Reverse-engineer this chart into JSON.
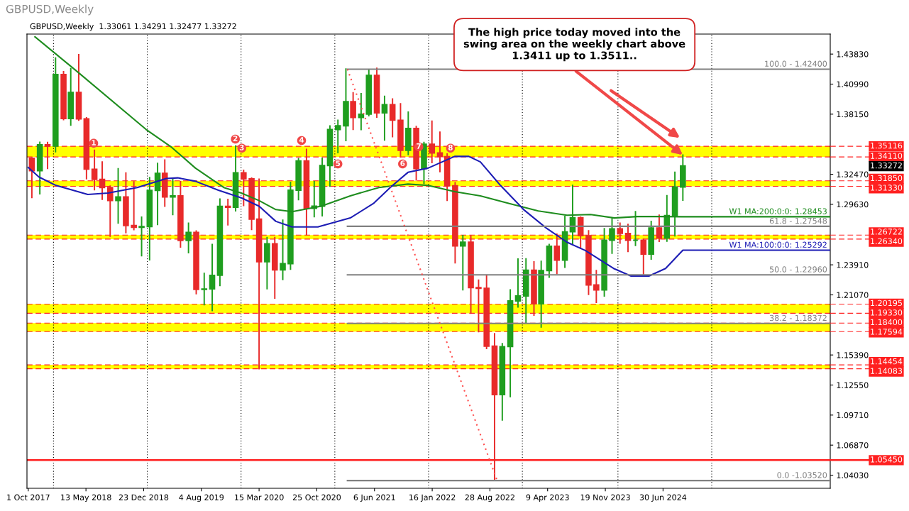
{
  "chart_data": {
    "type": "candlestick",
    "title": "GBPUSD,Weekly",
    "subtitle": "GBPUSD,Weekly  1.33061 1.34291 1.32477 1.33272",
    "x": [
      "2017-10-15",
      "2017-11-15",
      "2017-12-15",
      "2018-01-15",
      "2018-02-15",
      "2018-03-15",
      "2018-04-15",
      "2018-05-15",
      "2018-06-15",
      "2018-07-15",
      "2018-08-15",
      "2018-09-15",
      "2018-10-15",
      "2018-11-15",
      "2018-12-15",
      "2019-01-15",
      "2019-02-15",
      "2019-03-15",
      "2019-04-15",
      "2019-05-15",
      "2019-06-15",
      "2019-07-15",
      "2019-08-15",
      "2019-09-15",
      "2019-10-15",
      "2019-11-15",
      "2019-12-15",
      "2020-01-15",
      "2020-02-15",
      "2020-03-15",
      "2020-04-15",
      "2020-05-15",
      "2020-06-15",
      "2020-07-15",
      "2020-08-15",
      "2020-09-15",
      "2020-10-15",
      "2020-11-15",
      "2020-12-15",
      "2021-01-15",
      "2021-02-15",
      "2021-03-15",
      "2021-04-15",
      "2021-05-15",
      "2021-06-15",
      "2021-07-15",
      "2021-08-15",
      "2021-09-15",
      "2021-10-15",
      "2021-11-15",
      "2021-12-15",
      "2022-01-15",
      "2022-02-15",
      "2022-03-15",
      "2022-04-15",
      "2022-05-15",
      "2022-06-15",
      "2022-07-15",
      "2022-08-15",
      "2022-09-15",
      "2022-10-15",
      "2022-11-15",
      "2022-12-15",
      "2023-01-15",
      "2023-02-15",
      "2023-03-15",
      "2023-04-15",
      "2023-05-15",
      "2023-06-15",
      "2023-07-15",
      "2023-08-15",
      "2023-09-15",
      "2023-10-15",
      "2023-11-15",
      "2023-12-15",
      "2024-01-15",
      "2024-02-15",
      "2024-03-15",
      "2024-04-15",
      "2024-05-15",
      "2024-06-15",
      "2024-07-15",
      "2024-08-15",
      "2024-09-15"
    ],
    "ohlc": [
      [
        1.3398,
        1.3401,
        1.3027,
        1.3281
      ],
      [
        1.3281,
        1.3549,
        1.3062,
        1.3525
      ],
      [
        1.3525,
        1.3548,
        1.3302,
        1.3513
      ],
      [
        1.3513,
        1.4345,
        1.346,
        1.419
      ],
      [
        1.419,
        1.4216,
        1.3764,
        1.3773
      ],
      [
        1.3773,
        1.4245,
        1.3712,
        1.402
      ],
      [
        1.402,
        1.4377,
        1.3758,
        1.377
      ],
      [
        1.377,
        1.378,
        1.3205,
        1.3295
      ],
      [
        1.3295,
        1.3473,
        1.3101,
        1.3198
      ],
      [
        1.3198,
        1.3363,
        1.3011,
        1.3122
      ],
      [
        1.3122,
        1.3135,
        1.2662,
        1.2998
      ],
      [
        1.2998,
        1.3299,
        1.2786,
        1.3033
      ],
      [
        1.3033,
        1.3259,
        1.2696,
        1.2763
      ],
      [
        1.2763,
        1.3176,
        1.2723,
        1.2745
      ],
      [
        1.2745,
        1.2841,
        1.2477,
        1.2752
      ],
      [
        1.2752,
        1.3215,
        1.2438,
        1.3094
      ],
      [
        1.3094,
        1.3349,
        1.2773,
        1.3256
      ],
      [
        1.3256,
        1.3382,
        1.2945,
        1.3032
      ],
      [
        1.3032,
        1.3197,
        1.2866,
        1.3043
      ],
      [
        1.3043,
        1.3177,
        1.256,
        1.2621
      ],
      [
        1.2621,
        1.2784,
        1.2506,
        1.2697
      ],
      [
        1.2697,
        1.271,
        1.2119,
        1.2159
      ],
      [
        1.2159,
        1.231,
        1.2015,
        1.2163
      ],
      [
        1.2163,
        1.2583,
        1.1959,
        1.2292
      ],
      [
        1.2292,
        1.3013,
        1.2196,
        1.2944
      ],
      [
        1.2944,
        1.301,
        1.2769,
        1.2935
      ],
      [
        1.2935,
        1.3514,
        1.2902,
        1.326
      ],
      [
        1.326,
        1.3285,
        1.2952,
        1.3203
      ],
      [
        1.3203,
        1.3211,
        1.2725,
        1.2823
      ],
      [
        1.2823,
        1.32,
        1.1409,
        1.242
      ],
      [
        1.242,
        1.2648,
        1.2165,
        1.259
      ],
      [
        1.259,
        1.2648,
        1.2076,
        1.2343
      ],
      [
        1.2343,
        1.2813,
        1.2252,
        1.2402
      ],
      [
        1.2402,
        1.317,
        1.235,
        1.3096
      ],
      [
        1.3096,
        1.3395,
        1.3007,
        1.3373
      ],
      [
        1.3373,
        1.3482,
        1.2676,
        1.2925
      ],
      [
        1.2925,
        1.3177,
        1.2846,
        1.2945
      ],
      [
        1.2945,
        1.3399,
        1.2854,
        1.333
      ],
      [
        1.333,
        1.3704,
        1.3135,
        1.367
      ],
      [
        1.367,
        1.3758,
        1.3451,
        1.3705
      ],
      [
        1.3705,
        1.4241,
        1.3566,
        1.3933
      ],
      [
        1.3933,
        1.4017,
        1.3671,
        1.3783
      ],
      [
        1.3783,
        1.4009,
        1.3669,
        1.3815
      ],
      [
        1.3815,
        1.4234,
        1.38,
        1.4182
      ],
      [
        1.4182,
        1.4249,
        1.3787,
        1.3827
      ],
      [
        1.3827,
        1.3984,
        1.3571,
        1.3905
      ],
      [
        1.3905,
        1.3958,
        1.3602,
        1.3758
      ],
      [
        1.3758,
        1.3913,
        1.3412,
        1.3474
      ],
      [
        1.3474,
        1.3834,
        1.3434,
        1.368
      ],
      [
        1.368,
        1.3698,
        1.3194,
        1.33
      ],
      [
        1.33,
        1.3548,
        1.3161,
        1.3531
      ],
      [
        1.3531,
        1.3749,
        1.3358,
        1.3449
      ],
      [
        1.3449,
        1.3644,
        1.3273,
        1.3414
      ],
      [
        1.3414,
        1.3438,
        1.3,
        1.3138
      ],
      [
        1.3138,
        1.3167,
        1.2411,
        1.2569
      ],
      [
        1.2569,
        1.2667,
        1.2155,
        1.2605
      ],
      [
        1.2605,
        1.2666,
        1.1934,
        1.2175
      ],
      [
        1.2175,
        1.2246,
        1.176,
        1.2169
      ],
      [
        1.2169,
        1.2293,
        1.16,
        1.1622
      ],
      [
        1.1622,
        1.1739,
        1.0352,
        1.1165
      ],
      [
        1.1165,
        1.1646,
        1.0924,
        1.1618
      ],
      [
        1.1618,
        1.2154,
        1.1146,
        1.205
      ],
      [
        1.205,
        1.2446,
        1.1992,
        1.2097
      ],
      [
        1.2097,
        1.2448,
        1.1842,
        1.2341
      ],
      [
        1.2341,
        1.2419,
        1.1915,
        1.2023
      ],
      [
        1.2023,
        1.2424,
        1.1803,
        1.2337
      ],
      [
        1.2337,
        1.2584,
        1.2275,
        1.2566
      ],
      [
        1.2566,
        1.268,
        1.2308,
        1.2436
      ],
      [
        1.2436,
        1.2848,
        1.2369,
        1.2703
      ],
      [
        1.2703,
        1.3142,
        1.2591,
        1.2836
      ],
      [
        1.2836,
        1.2841,
        1.2548,
        1.2666
      ],
      [
        1.2666,
        1.2713,
        1.2111,
        1.2201
      ],
      [
        1.2201,
        1.2337,
        1.2037,
        1.2154
      ],
      [
        1.2154,
        1.2733,
        1.2096,
        1.2623
      ],
      [
        1.2623,
        1.2827,
        1.25,
        1.2731
      ],
      [
        1.2731,
        1.2785,
        1.2597,
        1.2688
      ],
      [
        1.2688,
        1.2773,
        1.2518,
        1.2624
      ],
      [
        1.2624,
        1.2893,
        1.2575,
        1.2624
      ],
      [
        1.2624,
        1.2634,
        1.23,
        1.2492
      ],
      [
        1.2492,
        1.2801,
        1.2446,
        1.274
      ],
      [
        1.274,
        1.286,
        1.2613,
        1.2645
      ],
      [
        1.2645,
        1.3044,
        1.2615,
        1.2857
      ],
      [
        1.2857,
        1.3266,
        1.2665,
        1.3126
      ],
      [
        1.3126,
        1.3429,
        1.3002,
        1.3327
      ]
    ],
    "colors": [
      "#e82a2a",
      "#1f9e1f",
      "#e82a2a",
      "#1f9e1f",
      "#e82a2a",
      "#1f9e1f",
      "#e82a2a",
      "#e82a2a",
      "#e82a2a",
      "#e82a2a",
      "#e82a2a",
      "#1f9e1f",
      "#e82a2a",
      "#e82a2a",
      "#1f9e1f",
      "#1f9e1f",
      "#1f9e1f",
      "#e82a2a",
      "#1f9e1f",
      "#e82a2a",
      "#1f9e1f",
      "#e82a2a",
      "#1f9e1f",
      "#1f9e1f",
      "#1f9e1f",
      "#e82a2a",
      "#1f9e1f",
      "#e82a2a",
      "#e82a2a",
      "#e82a2a",
      "#1f9e1f",
      "#e82a2a",
      "#1f9e1f",
      "#1f9e1f",
      "#1f9e1f",
      "#e82a2a",
      "#1f9e1f",
      "#1f9e1f",
      "#1f9e1f",
      "#1f9e1f",
      "#1f9e1f",
      "#e82a2a",
      "#1f9e1f",
      "#1f9e1f",
      "#e82a2a",
      "#1f9e1f",
      "#e82a2a",
      "#e82a2a",
      "#1f9e1f",
      "#e82a2a",
      "#1f9e1f",
      "#e82a2a",
      "#e82a2a",
      "#e82a2a",
      "#e82a2a",
      "#1f9e1f",
      "#e82a2a",
      "#e82a2a",
      "#e82a2a",
      "#e82a2a",
      "#1f9e1f",
      "#1f9e1f",
      "#1f9e1f",
      "#1f9e1f",
      "#e82a2a",
      "#1f9e1f",
      "#1f9e1f",
      "#e82a2a",
      "#1f9e1f",
      "#1f9e1f",
      "#e82a2a",
      "#e82a2a",
      "#e82a2a",
      "#1f9e1f",
      "#1f9e1f",
      "#e82a2a",
      "#e82a2a",
      "#1f9e1f",
      "#e82a2a",
      "#1f9e1f",
      "#e82a2a",
      "#1f9e1f",
      "#1f9e1f",
      "#1f9e1f"
    ],
    "series": [
      {
        "type": "line",
        "name": "W1 MA:200:0:0: 1.28453",
        "color": "#1e8c1e",
        "x": [
          "2017-10-27",
          "2018-04-05",
          "2019-01-01",
          "2019-04-11",
          "2019-07-12",
          "2019-10-30",
          "2020-01-06",
          "2020-03-15",
          "2020-05-19",
          "2020-07-21",
          "2020-11-11",
          "2021-03-04",
          "2021-06-23",
          "2021-10-14",
          "2021-12-31",
          "2022-04-13",
          "2022-07-22",
          "2022-11-11",
          "2023-03-04",
          "2023-06-23",
          "2023-09-23",
          "2023-12-24",
          "2024-03-22",
          "2024-06-19",
          "2024-09-15",
          "2026-04-10"
        ],
        "values": [
          1.4546,
          1.4226,
          1.3671,
          1.3501,
          1.3305,
          1.3122,
          1.3069,
          1.2998,
          1.2913,
          1.2893,
          1.2945,
          1.3043,
          1.3122,
          1.3154,
          1.3141,
          1.3083,
          1.3043,
          1.2971,
          1.29,
          1.286,
          1.2867,
          1.2834,
          1.2847,
          1.2847,
          1.28453,
          1.28453
        ]
      },
      {
        "type": "line",
        "name": "W1 MA:100:0:0: 1.25292",
        "color": "#1c1cb4",
        "x": [
          "2017-10-01",
          "2017-11-12",
          "2018-01-17",
          "2018-05-20",
          "2018-08-07",
          "2018-11-28",
          "2019-03-21",
          "2019-05-04",
          "2019-07-12",
          "2019-10-09",
          "2020-01-06",
          "2020-03-15",
          "2020-05-19",
          "2020-07-21",
          "2020-10-29",
          "2021-03-04",
          "2021-06-02",
          "2021-08-06",
          "2021-10-14",
          "2021-12-31",
          "2022-04-13",
          "2022-06-07",
          "2022-07-22",
          "2022-10-08",
          "2023-01-06",
          "2023-04-05",
          "2023-06-23",
          "2023-09-02",
          "2023-12-21",
          "2024-02-27",
          "2024-05-06",
          "2024-07-10",
          "2024-09-15",
          "2026-04-10"
        ],
        "values": [
          1.3311,
          1.322,
          1.3141,
          1.3056,
          1.3069,
          1.3122,
          1.3207,
          1.3213,
          1.3181,
          1.3096,
          1.3024,
          1.2945,
          1.2802,
          1.2749,
          1.2749,
          1.2834,
          1.2971,
          1.3122,
          1.3265,
          1.3305,
          1.3416,
          1.3416,
          1.3364,
          1.3141,
          1.2913,
          1.2736,
          1.2605,
          1.2527,
          1.2357,
          1.2285,
          1.2285,
          1.2357,
          1.25292,
          1.25292
        ]
      },
      {
        "type": "line",
        "name": "100.0 - 1.42400",
        "color": "#808080",
        "x": [
          "2021-02-21",
          "2026-04-10"
        ],
        "values": [
          1.424,
          1.424
        ]
      },
      {
        "type": "line",
        "name": "61.8 - 1.27548",
        "color": "#808080",
        "x": [
          "2021-02-21",
          "2026-04-10"
        ],
        "values": [
          1.27548,
          1.27548
        ]
      },
      {
        "type": "line",
        "name": "50.0 - 1.22960",
        "color": "#808080",
        "x": [
          "2021-02-21",
          "2026-04-10"
        ],
        "values": [
          1.2296,
          1.2296
        ]
      },
      {
        "type": "line",
        "name": "38.2 - 1.18372",
        "color": "#808080",
        "x": [
          "2021-02-21",
          "2026-04-10"
        ],
        "values": [
          1.18372,
          1.18372
        ]
      },
      {
        "type": "line",
        "name": "0.0 -1.03520",
        "color": "#808080",
        "x": [
          "2021-02-21",
          "2026-04-10"
        ],
        "values": [
          1.0352,
          1.0352
        ]
      },
      {
        "type": "line",
        "color": "#ff5050",
        "line_style": "dotted",
        "x": [
          "2021-02-21",
          "2022-09-25"
        ],
        "values": [
          1.424,
          1.0352
        ]
      }
    ],
    "xlim": [
      "2017-09-26",
      "2026-04-10"
    ],
    "ylim": [
      1.0279,
      1.4572
    ],
    "xticks": [
      {
        "value": "2017-10-01",
        "label": "1 Oct 2017"
      },
      {
        "value": "2018-05-13",
        "label": "13 May 2018"
      },
      {
        "value": "2018-12-23",
        "label": "23 Dec 2018"
      },
      {
        "value": "2019-08-04",
        "label": "4 Aug 2019"
      },
      {
        "value": "2020-03-15",
        "label": "15 Mar 2020"
      },
      {
        "value": "2020-10-25",
        "label": "25 Oct 2020"
      },
      {
        "value": "2021-06-06",
        "label": "6 Jun 2021"
      },
      {
        "value": "2022-01-16",
        "label": "16 Jan 2022"
      },
      {
        "value": "2022-08-28",
        "label": "28 Aug 2022"
      },
      {
        "value": "2023-04-09",
        "label": "9 Apr 2023"
      },
      {
        "value": "2023-11-19",
        "label": "19 Nov 2023"
      },
      {
        "value": "2024-06-30",
        "label": "30 Jun 2024"
      }
    ],
    "yticks": [
      {
        "value": 1.4383,
        "label": "1.43830"
      },
      {
        "value": 1.4099,
        "label": "1.40990"
      },
      {
        "value": 1.3815,
        "label": "1.38150"
      },
      {
        "value": 1.3247,
        "label": "1.32470"
      },
      {
        "value": 1.2963,
        "label": "1.29630"
      },
      {
        "value": 1.2391,
        "label": "1.23910"
      },
      {
        "value": 1.2107,
        "label": "1.21070"
      },
      {
        "value": 1.1539,
        "label": "1.15390"
      },
      {
        "value": 1.1255,
        "label": "1.12550"
      },
      {
        "value": 1.0971,
        "label": "1.09710"
      },
      {
        "value": 1.0687,
        "label": "1.06870"
      },
      {
        "value": 1.0403,
        "label": "1.04030"
      }
    ],
    "bands": [
      {
        "axis": "y",
        "from": 1.3411,
        "to": 1.35116,
        "color": "#ffff00"
      },
      {
        "axis": "y",
        "from": 1.3133,
        "to": 1.3185,
        "color": "#ffff00"
      },
      {
        "axis": "y",
        "from": 1.2634,
        "to": 1.26722,
        "color": "#ffff00"
      },
      {
        "axis": "y",
        "from": 1.1933,
        "to": 1.20195,
        "color": "#ffff00"
      },
      {
        "axis": "y",
        "from": 1.17594,
        "to": 1.184,
        "color": "#ffff00"
      },
      {
        "axis": "y",
        "from": 1.14083,
        "to": 1.14454,
        "color": "#ffff00"
      }
    ],
    "ref_lines": [
      {
        "axis": "y",
        "value": 1.35116,
        "label": "1.35116",
        "color": "#ff2020",
        "line_style": "dashed"
      },
      {
        "axis": "y",
        "value": 1.3411,
        "label": "1.34110",
        "color": "#ff2020",
        "line_style": "dashed"
      },
      {
        "axis": "y",
        "value": 1.3185,
        "label": "1.31850",
        "color": "#ff2020",
        "line_style": "dashed"
      },
      {
        "axis": "y",
        "value": 1.3133,
        "label": "1.31330",
        "color": "#ff2020",
        "line_style": "dashed"
      },
      {
        "axis": "y",
        "value": 1.26722,
        "label": "1.26722",
        "color": "#ff2020",
        "line_style": "dashed"
      },
      {
        "axis": "y",
        "value": 1.2634,
        "label": "1.26340",
        "color": "#ff2020",
        "line_style": "dashed"
      },
      {
        "axis": "y",
        "value": 1.20195,
        "label": "1.20195",
        "color": "#ff2020",
        "line_style": "dashed"
      },
      {
        "axis": "y",
        "value": 1.1933,
        "label": "1.19330",
        "color": "#ff2020",
        "line_style": "dashed"
      },
      {
        "axis": "y",
        "value": 1.184,
        "label": "1.18400",
        "color": "#ff2020",
        "line_style": "dashed"
      },
      {
        "axis": "y",
        "value": 1.17594,
        "label": "1.17594",
        "color": "#ff2020",
        "line_style": "dashed"
      },
      {
        "axis": "y",
        "value": 1.14454,
        "label": "1.14454",
        "color": "#ff2020",
        "line_style": "dashed"
      },
      {
        "axis": "y",
        "value": 1.14083,
        "label": "1.14083",
        "color": "#ff2020",
        "line_style": "dashed"
      },
      {
        "axis": "y",
        "value": 1.0545,
        "label": "1.05450",
        "color": "#ff2020",
        "line_style": "solid"
      },
      {
        "axis": "x",
        "value": "2018-01-07",
        "color": "#000000",
        "line_style": "dotted"
      },
      {
        "axis": "x",
        "value": "2019-01-06",
        "color": "#000000",
        "line_style": "dotted"
      },
      {
        "axis": "x",
        "value": "2020-01-05",
        "color": "#000000",
        "line_style": "dotted"
      },
      {
        "axis": "x",
        "value": "2021-01-03",
        "color": "#000000",
        "line_style": "dotted"
      },
      {
        "axis": "x",
        "value": "2022-01-02",
        "color": "#000000",
        "line_style": "dotted"
      },
      {
        "axis": "x",
        "value": "2023-01-01",
        "color": "#000000",
        "line_style": "dotted"
      },
      {
        "axis": "x",
        "value": "2024-01-07",
        "color": "#000000",
        "line_style": "dotted"
      },
      {
        "axis": "x",
        "value": "2025-01-05",
        "color": "#000000",
        "line_style": "dotted"
      }
    ],
    "annotations": [
      {
        "text": "The high price today moved into the\nswing area on the weekly chart above\n1.3411 up to 1.3511..",
        "x": "2024-09-15",
        "y": 1.3429
      },
      "1.33272",
      {
        "text": "1",
        "x": "2018-06-12",
        "y": 1.354
      },
      {
        "text": "2",
        "x": "2019-12-14",
        "y": 1.3579
      },
      {
        "text": "3",
        "x": "2020-01-08",
        "y": 1.3494
      },
      {
        "text": "4",
        "x": "2020-08-27",
        "y": 1.3566
      },
      {
        "text": "5",
        "x": "2021-01-15",
        "y": 1.3344
      },
      {
        "text": "6",
        "x": "2021-09-23",
        "y": 1.3344
      },
      {
        "text": "7",
        "x": "2021-11-25",
        "y": 1.3507
      },
      {
        "text": "8",
        "x": "2022-03-28",
        "y": 1.3494
      }
    ]
  }
}
